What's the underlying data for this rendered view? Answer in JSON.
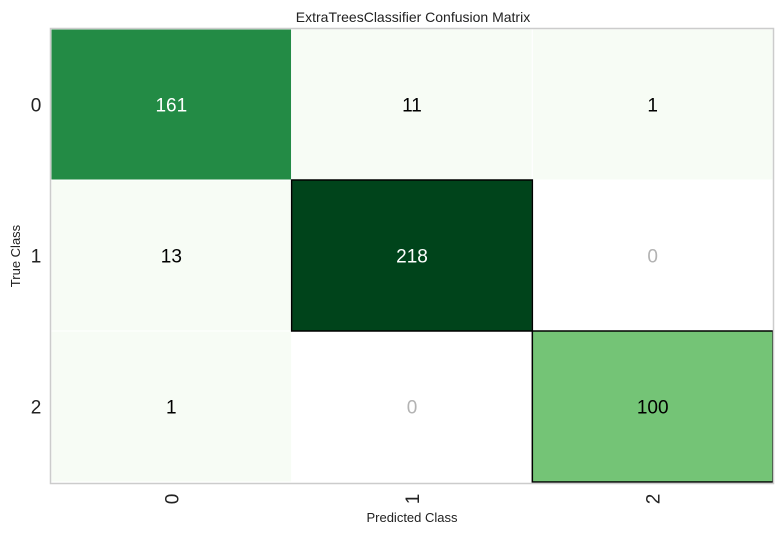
{
  "chart_data": {
    "type": "heatmap",
    "title": "ExtraTreesClassifier Confusion Matrix",
    "xlabel": "Predicted Class",
    "ylabel": "True Class",
    "x_tick_labels": [
      "0",
      "1",
      "2"
    ],
    "y_tick_labels": [
      "0",
      "1",
      "2"
    ],
    "matrix": [
      [
        161,
        11,
        1
      ],
      [
        13,
        218,
        0
      ],
      [
        1,
        0,
        100
      ]
    ],
    "colormap": "Greens",
    "zero_text_color": "#b3b3b3",
    "diagonal_outline": true
  }
}
